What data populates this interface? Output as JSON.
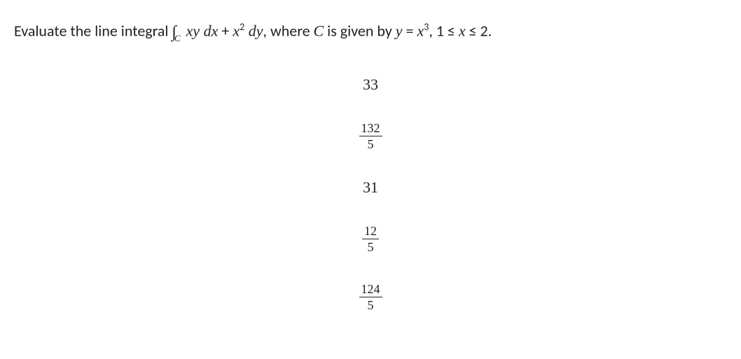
{
  "question": {
    "prefix": "Evaluate the line integral ",
    "integral_symbol": "∫",
    "integral_sub": "C",
    "integrand_part1": "xy dx",
    "plus": " + ",
    "integrand_part2_base": "x",
    "integrand_part2_exp": "2",
    "integrand_part2_tail": " dy",
    "mid": ", where ",
    "curve_var": "C",
    "mid2": " is given by ",
    "eq_lhs": "y",
    "eq_eq": " = ",
    "eq_rhs_base": "x",
    "eq_rhs_exp": "3",
    "range_prefix": ", 1 ≤ ",
    "range_var": "x",
    "range_suffix": " ≤ 2."
  },
  "options": [
    {
      "type": "plain",
      "value": "33"
    },
    {
      "type": "fraction",
      "num": "132",
      "den": "5"
    },
    {
      "type": "plain",
      "value": "31"
    },
    {
      "type": "fraction",
      "num": "12",
      "den": "5"
    },
    {
      "type": "fraction",
      "num": "124",
      "den": "5"
    }
  ],
  "styling": {
    "background_color": "#ffffff",
    "text_color": "#222222",
    "question_fontsize": 22,
    "option_fontsize": 22,
    "fraction_fontsize": 18,
    "option_gap": 42
  }
}
